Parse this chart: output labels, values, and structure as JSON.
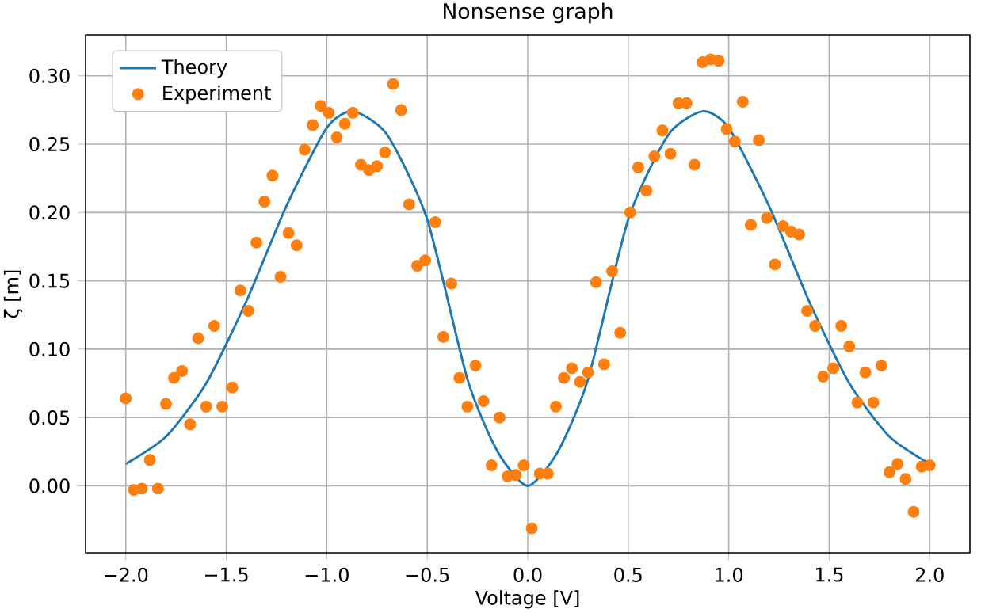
{
  "chart_data": {
    "type": "scatter",
    "title": "Nonsense graph",
    "xlabel": "Voltage [V]",
    "ylabel": "ζ [m]",
    "xlim": [
      -2.2,
      2.2
    ],
    "ylim": [
      -0.049,
      0.33
    ],
    "xticks": [
      {
        "value": -2.0,
        "label": "−2.0"
      },
      {
        "value": -1.5,
        "label": "−1.5"
      },
      {
        "value": -1.0,
        "label": "−1.0"
      },
      {
        "value": -0.5,
        "label": "−0.5"
      },
      {
        "value": 0.0,
        "label": "0.0"
      },
      {
        "value": 0.5,
        "label": "0.5"
      },
      {
        "value": 1.0,
        "label": "1.0"
      },
      {
        "value": 1.5,
        "label": "1.5"
      },
      {
        "value": 2.0,
        "label": "2.0"
      }
    ],
    "yticks": [
      {
        "value": 0.0,
        "label": "0.00"
      },
      {
        "value": 0.05,
        "label": "0.05"
      },
      {
        "value": 0.1,
        "label": "0.10"
      },
      {
        "value": 0.15,
        "label": "0.15"
      },
      {
        "value": 0.2,
        "label": "0.20"
      },
      {
        "value": 0.25,
        "label": "0.25"
      },
      {
        "value": 0.3,
        "label": "0.30"
      }
    ],
    "grid": true,
    "legend": "top left",
    "series": [
      {
        "name": "Theory",
        "type": "line",
        "marker": "none",
        "color": "#1f77b4",
        "x": [
          -2.0,
          -1.8,
          -1.6,
          -1.4,
          -1.2,
          -1.0,
          -0.87,
          -0.7,
          -0.5,
          -0.3,
          -0.15,
          0.0,
          0.15,
          0.3,
          0.5,
          0.7,
          0.87,
          1.0,
          1.2,
          1.4,
          1.6,
          1.8,
          2.0
        ],
        "values": [
          0.016,
          0.036,
          0.075,
          0.135,
          0.205,
          0.262,
          0.274,
          0.257,
          0.195,
          0.078,
          0.025,
          0.0,
          0.025,
          0.078,
          0.195,
          0.257,
          0.274,
          0.262,
          0.205,
          0.135,
          0.075,
          0.036,
          0.016
        ]
      },
      {
        "name": "Experiment",
        "marker": "circle",
        "color": "#ff7f0e",
        "x": [
          -2.0,
          -1.96,
          -1.92,
          -1.88,
          -1.84,
          -1.8,
          -1.76,
          -1.72,
          -1.68,
          -1.64,
          -1.6,
          -1.56,
          -1.52,
          -1.47,
          -1.43,
          -1.39,
          -1.35,
          -1.31,
          -1.27,
          -1.23,
          -1.19,
          -1.15,
          -1.11,
          -1.07,
          -1.03,
          -0.99,
          -0.95,
          -0.91,
          -0.87,
          -0.83,
          -0.79,
          -0.75,
          -0.71,
          -0.67,
          -0.63,
          -0.59,
          -0.55,
          -0.51,
          -0.46,
          -0.42,
          -0.38,
          -0.34,
          -0.3,
          -0.26,
          -0.22,
          -0.18,
          -0.14,
          -0.1,
          -0.06,
          -0.02,
          0.02,
          0.06,
          0.1,
          0.14,
          0.18,
          0.22,
          0.26,
          0.3,
          0.34,
          0.38,
          0.42,
          0.46,
          0.51,
          0.55,
          0.59,
          0.63,
          0.67,
          0.71,
          0.75,
          0.79,
          0.83,
          0.87,
          0.91,
          0.95,
          0.99,
          1.03,
          1.07,
          1.11,
          1.15,
          1.19,
          1.23,
          1.27,
          1.31,
          1.35,
          1.39,
          1.43,
          1.47,
          1.52,
          1.56,
          1.6,
          1.64,
          1.68,
          1.72,
          1.76,
          1.8,
          1.84,
          1.88,
          1.92,
          1.96,
          2.0
        ],
        "values": [
          0.064,
          -0.003,
          -0.002,
          0.019,
          -0.002,
          0.06,
          0.079,
          0.084,
          0.045,
          0.108,
          0.058,
          0.117,
          0.058,
          0.072,
          0.143,
          0.128,
          0.178,
          0.208,
          0.227,
          0.153,
          0.185,
          0.176,
          0.246,
          0.264,
          0.278,
          0.273,
          0.255,
          0.265,
          0.273,
          0.235,
          0.231,
          0.234,
          0.244,
          0.294,
          0.275,
          0.206,
          0.161,
          0.165,
          0.193,
          0.109,
          0.148,
          0.079,
          0.058,
          0.088,
          0.062,
          0.015,
          0.05,
          0.007,
          0.008,
          0.015,
          -0.031,
          0.009,
          0.009,
          0.058,
          0.079,
          0.086,
          0.076,
          0.083,
          0.149,
          0.089,
          0.157,
          0.112,
          0.2,
          0.233,
          0.216,
          0.241,
          0.26,
          0.243,
          0.28,
          0.28,
          0.235,
          0.31,
          0.312,
          0.311,
          0.261,
          0.252,
          0.281,
          0.191,
          0.253,
          0.196,
          0.162,
          0.19,
          0.186,
          0.184,
          0.128,
          0.117,
          0.08,
          0.086,
          0.117,
          0.102,
          0.061,
          0.083,
          0.061,
          0.088,
          0.01,
          0.016,
          0.005,
          -0.019,
          0.014,
          0.015
        ]
      }
    ]
  }
}
